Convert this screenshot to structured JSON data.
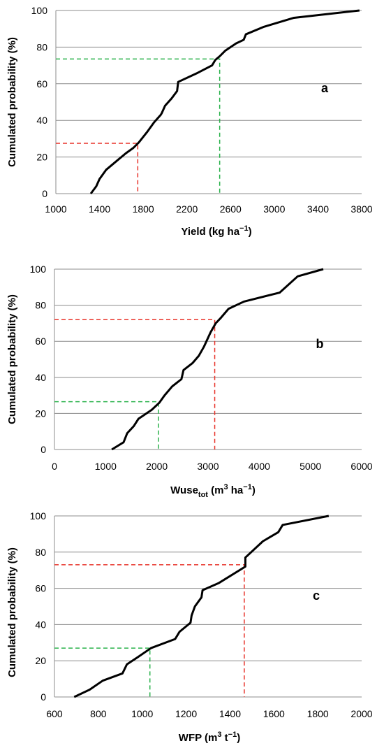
{
  "chart_data": [
    {
      "type": "line",
      "panel_label": "a",
      "ylabel": "Cumulated probability (%)",
      "xlabel_main": "Yield (kg ha",
      "xlabel_sup": "−1",
      "xlabel_end": ")",
      "xlim": [
        1000,
        3800
      ],
      "ylim": [
        0,
        100
      ],
      "xticks": [
        "1000",
        "1400",
        "1800",
        "2200",
        "2600",
        "3000",
        "3400",
        "3800"
      ],
      "yticks": [
        "0",
        "20",
        "40",
        "60",
        "80",
        "100"
      ],
      "series": [
        {
          "x": [
            1320,
            1370,
            1400,
            1460,
            1540,
            1640,
            1710,
            1760,
            1840,
            1900,
            1960,
            1970,
            2000,
            2060,
            2110,
            2120,
            2300,
            2430,
            2460,
            2500,
            2550,
            2650,
            2720,
            2740,
            2900,
            3180,
            3780
          ],
          "y": [
            0,
            4,
            8,
            13,
            17,
            22,
            25,
            28,
            34,
            39,
            43,
            44,
            48,
            52,
            56,
            61,
            66,
            70,
            73,
            75,
            78,
            82,
            84,
            87,
            91,
            96,
            100
          ]
        }
      ],
      "guides": [
        {
          "color": "#e8332a",
          "x": 1750,
          "y": 27.5
        },
        {
          "color": "#2bb24c",
          "x": 2500,
          "y": 73.5
        }
      ]
    },
    {
      "type": "line",
      "panel_label": "b",
      "ylabel": "Cumulated probability (%)",
      "xlabel_main": "Wuse",
      "xlabel_sub": "tot",
      "xlabel_mid": " (m",
      "xlabel_sup1": "3",
      "xlabel_mid2": " ha",
      "xlabel_sup2": "−1",
      "xlabel_end": ")",
      "xlim": [
        0,
        6000
      ],
      "ylim": [
        0,
        100
      ],
      "xticks": [
        "0",
        "1000",
        "2000",
        "3000",
        "4000",
        "5000",
        "6000"
      ],
      "yticks": [
        "0",
        "20",
        "40",
        "60",
        "80",
        "100"
      ],
      "series": [
        {
          "x": [
            1120,
            1350,
            1420,
            1550,
            1640,
            1900,
            2050,
            2150,
            2300,
            2480,
            2520,
            2700,
            2820,
            2920,
            3050,
            3150,
            3250,
            3400,
            3700,
            4400,
            4750,
            5250
          ],
          "y": [
            0,
            4,
            9,
            13,
            17,
            22,
            26,
            30,
            35,
            39,
            44,
            48,
            52,
            57,
            65,
            70,
            73,
            78,
            82,
            87,
            96,
            100
          ]
        }
      ],
      "guides": [
        {
          "color": "#2bb24c",
          "x": 2030,
          "y": 26.5
        },
        {
          "color": "#e8332a",
          "x": 3130,
          "y": 72
        }
      ]
    },
    {
      "type": "line",
      "panel_label": "c",
      "ylabel": "Cumulated probability (%)",
      "xlabel_main": "WFP (m",
      "xlabel_sup1": "3",
      "xlabel_mid2": " t",
      "xlabel_sup2": "−1",
      "xlabel_end": ")",
      "xlim": [
        600,
        2000
      ],
      "ylim": [
        0,
        100
      ],
      "xticks": [
        "600",
        "800",
        "1000",
        "1200",
        "1400",
        "1600",
        "1800",
        "2000"
      ],
      "yticks": [
        "0",
        "20",
        "40",
        "60",
        "80",
        "100"
      ],
      "series": [
        {
          "x": [
            690,
            760,
            820,
            910,
            930,
            980,
            1040,
            1150,
            1170,
            1220,
            1225,
            1240,
            1270,
            1275,
            1350,
            1470,
            1470,
            1550,
            1620,
            1640,
            1850
          ],
          "y": [
            0,
            4,
            9,
            13,
            18,
            22,
            27,
            32,
            36,
            41,
            45,
            50,
            55,
            59,
            63,
            72,
            77,
            86,
            91,
            95,
            100
          ]
        }
      ],
      "guides": [
        {
          "color": "#2bb24c",
          "x": 1035,
          "y": 27
        },
        {
          "color": "#e8332a",
          "x": 1465,
          "y": 73
        }
      ]
    }
  ]
}
